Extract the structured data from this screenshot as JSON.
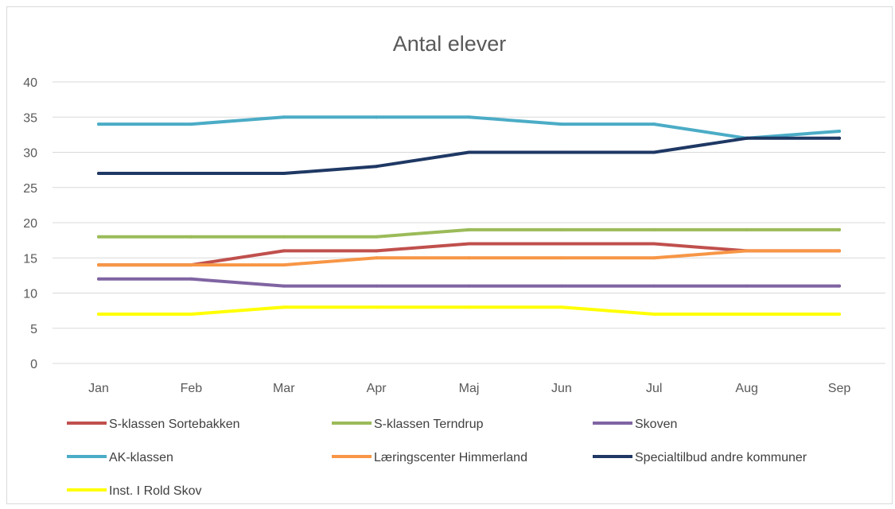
{
  "chart_data": {
    "type": "line",
    "title": "Antal elever",
    "xlabel": "",
    "ylabel": "",
    "categories": [
      "Jan",
      "Feb",
      "Mar",
      "Apr",
      "Maj",
      "Jun",
      "Jul",
      "Aug",
      "Sep"
    ],
    "ylim": [
      0,
      40
    ],
    "yticks": [
      0,
      5,
      10,
      15,
      20,
      25,
      30,
      35,
      40
    ],
    "grid": "horizontal",
    "legend_position": "bottom",
    "series": [
      {
        "name": "S-klassen Sortebakken",
        "color": "#c0504d",
        "values": [
          14,
          14,
          16,
          16,
          17,
          17,
          17,
          16,
          16
        ]
      },
      {
        "name": "S-klassen Terndrup",
        "color": "#9bbb59",
        "values": [
          18,
          18,
          18,
          18,
          19,
          19,
          19,
          19,
          19
        ]
      },
      {
        "name": "Skoven",
        "color": "#8064a2",
        "values": [
          12,
          12,
          11,
          11,
          11,
          11,
          11,
          11,
          11
        ]
      },
      {
        "name": "AK-klassen",
        "color": "#4bacc6",
        "values": [
          34,
          34,
          35,
          35,
          35,
          34,
          34,
          32,
          33
        ]
      },
      {
        "name": "Læringscenter Himmerland",
        "color": "#f79646",
        "values": [
          14,
          14,
          14,
          15,
          15,
          15,
          15,
          16,
          16
        ]
      },
      {
        "name": "Specialtilbud andre kommuner",
        "color": "#1f3864",
        "values": [
          27,
          27,
          27,
          28,
          30,
          30,
          30,
          32,
          32
        ]
      },
      {
        "name": "Inst. I Rold Skov",
        "color": "#ffff00",
        "values": [
          7,
          7,
          8,
          8,
          8,
          8,
          7,
          7,
          7
        ]
      }
    ]
  }
}
